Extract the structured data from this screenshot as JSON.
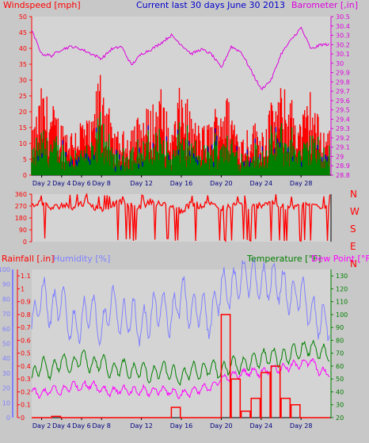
{
  "page": {
    "title": "Current last 30 days June 30 2013",
    "colors": {
      "background": "#c8c8c8",
      "plot_bg": "#dcdcdc",
      "wind": "#ff0000",
      "gust_core": "#0000cc",
      "green": "#008000",
      "baro": "#dd00dd",
      "humidity": "#8080ff",
      "dewpoint": "#ff00ff",
      "title": "#0000cc"
    }
  },
  "chart_data": [
    {
      "type": "line",
      "name": "wind-barometer",
      "title": "Current last 30 days June 30 2013",
      "left_axis_label": "Windspeed [mph]",
      "right_axis_label": "Barometer [,in]",
      "left_ticks": [
        "0",
        "5",
        "10",
        "15",
        "20",
        "25",
        "30",
        "35",
        "40",
        "45",
        "50"
      ],
      "right_ticks": [
        "28.8",
        "28.9",
        "29",
        "29.1",
        "29.2",
        "29.3",
        "29.4",
        "29.5",
        "29.6",
        "29.7",
        "29.8",
        "29.9",
        "30",
        "30.1",
        "30.2",
        "30.3",
        "30.4",
        "30.5"
      ],
      "ylim_left": [
        0,
        50
      ],
      "ylim_right": [
        28.8,
        30.5
      ],
      "x_ticks": [
        "Day 2",
        "Day 4",
        "Day 6",
        "Day 8",
        "Day 12",
        "Day 16",
        "Day 20",
        "Day 24",
        "Day 28"
      ],
      "x_tick_days": [
        2,
        4,
        6,
        8,
        12,
        16,
        20,
        24,
        28
      ],
      "xlim_days": [
        1,
        31
      ],
      "series": [
        {
          "role": "barometer",
          "color": "#dd00dd",
          "x": [
            1,
            2,
            3,
            4,
            5,
            6,
            7,
            8,
            9,
            10,
            11,
            12,
            13,
            14,
            15,
            16,
            17,
            18,
            19,
            20,
            21,
            22,
            23,
            24,
            25,
            26,
            27,
            28,
            29,
            30
          ],
          "values": [
            30.35,
            30.1,
            30.08,
            30.15,
            30.18,
            30.15,
            30.1,
            30.05,
            30.15,
            30.18,
            29.98,
            30.1,
            30.15,
            30.22,
            30.3,
            30.2,
            30.1,
            30.15,
            30.1,
            29.95,
            30.18,
            30.12,
            29.92,
            29.72,
            29.82,
            30.1,
            30.25,
            30.38,
            30.15,
            30.2
          ]
        },
        {
          "role": "windspeed",
          "color": "#ff0000",
          "x": [
            1,
            2,
            3,
            4,
            5,
            6,
            7,
            8,
            9,
            10,
            11,
            12,
            13,
            14,
            15,
            16,
            17,
            18,
            19,
            20,
            21,
            22,
            23,
            24,
            25,
            26,
            27,
            28,
            29,
            30
          ],
          "values": [
            10,
            22,
            18,
            14,
            12,
            15,
            13,
            30,
            12,
            10,
            14,
            15,
            18,
            22,
            10,
            24,
            15,
            12,
            14,
            22,
            18,
            10,
            14,
            12,
            18,
            22,
            20,
            14,
            22,
            12
          ]
        }
      ]
    },
    {
      "type": "scatter",
      "name": "wind-direction",
      "left_ticks": [
        "0",
        "90",
        "180",
        "270",
        "360"
      ],
      "ylim": [
        0,
        360
      ],
      "compass_labels": [
        "N",
        "W",
        "S",
        "E",
        "N"
      ],
      "series": [
        {
          "role": "direction",
          "color": "#ff0000",
          "x": [
            1,
            2,
            3,
            4,
            5,
            6,
            7,
            8,
            9,
            10,
            11,
            12,
            13,
            14,
            15,
            16,
            17,
            18,
            19,
            20,
            21,
            22,
            23,
            24,
            25,
            26,
            27,
            28,
            29,
            30
          ],
          "values": [
            270,
            300,
            250,
            280,
            260,
            290,
            270,
            240,
            280,
            300,
            270,
            260,
            310,
            280,
            270,
            230,
            290,
            270,
            300,
            250,
            270,
            290,
            260,
            280,
            310,
            270,
            250,
            290,
            280,
            270
          ]
        }
      ]
    },
    {
      "type": "line",
      "name": "rain-humidity-temp",
      "rain_label": "Rainfall [.in]",
      "humidity_label": "Humidity [%]",
      "temp_label": "Temperature [°F]",
      "dew_label": "Dew Point [°F]",
      "rain_ticks": [
        "0",
        "0.1",
        "0.2",
        "0.3",
        "0.4",
        "0.5",
        "0.6",
        "0.7",
        "0.8",
        "0.9",
        "1",
        "1.1"
      ],
      "humidity_ticks": [
        "0",
        "10",
        "20",
        "30",
        "40",
        "50",
        "60",
        "70",
        "80",
        "90",
        "100"
      ],
      "temp_ticks": [
        "20",
        "30",
        "40",
        "50",
        "60",
        "70",
        "80",
        "90",
        "100",
        "110",
        "120",
        "130"
      ],
      "rain_lim": [
        0,
        1.15
      ],
      "humidity_lim": [
        0,
        100
      ],
      "temp_lim": [
        20,
        135
      ],
      "x_ticks": [
        "Day 2",
        "Day 4",
        "Day 6",
        "Day 8",
        "Day 12",
        "Day 16",
        "Day 20",
        "Day 24",
        "Day 28"
      ],
      "x_tick_days": [
        2,
        4,
        6,
        8,
        12,
        16,
        20,
        24,
        28
      ],
      "xlim_days": [
        1,
        31
      ],
      "series": [
        {
          "role": "humidity",
          "color": "#8080ff",
          "x": [
            1,
            2,
            3,
            4,
            5,
            6,
            7,
            8,
            9,
            10,
            11,
            12,
            13,
            14,
            15,
            16,
            17,
            18,
            19,
            20,
            21,
            22,
            23,
            24,
            25,
            26,
            27,
            28,
            29,
            30
          ],
          "values": [
            60,
            85,
            70,
            80,
            60,
            65,
            75,
            55,
            80,
            65,
            70,
            60,
            70,
            75,
            65,
            85,
            70,
            75,
            65,
            90,
            85,
            95,
            95,
            90,
            92,
            90,
            80,
            85,
            70,
            65
          ]
        },
        {
          "role": "temperature",
          "color": "#008000",
          "x": [
            1,
            2,
            3,
            4,
            5,
            6,
            7,
            8,
            9,
            10,
            11,
            12,
            13,
            14,
            15,
            16,
            17,
            18,
            19,
            20,
            21,
            22,
            23,
            24,
            25,
            26,
            27,
            28,
            29,
            30
          ],
          "values": [
            50,
            62,
            55,
            65,
            58,
            68,
            60,
            64,
            56,
            60,
            55,
            58,
            52,
            58,
            55,
            50,
            58,
            55,
            60,
            55,
            62,
            60,
            64,
            66,
            68,
            65,
            70,
            72,
            75,
            70
          ]
        },
        {
          "role": "dewpoint",
          "color": "#ff00ff",
          "x": [
            1,
            2,
            3,
            4,
            5,
            6,
            7,
            8,
            9,
            10,
            11,
            12,
            13,
            14,
            15,
            16,
            17,
            18,
            19,
            20,
            21,
            22,
            23,
            24,
            25,
            26,
            27,
            28,
            29,
            30
          ],
          "values": [
            40,
            38,
            42,
            40,
            45,
            44,
            46,
            42,
            40,
            42,
            40,
            41,
            40,
            42,
            40,
            38,
            40,
            42,
            44,
            50,
            52,
            54,
            56,
            55,
            58,
            58,
            60,
            62,
            64,
            55
          ]
        },
        {
          "role": "rainfall",
          "color": "#ff0000",
          "x": [
            1,
            2,
            3,
            4,
            5,
            6,
            7,
            8,
            9,
            10,
            11,
            12,
            13,
            14,
            15,
            16,
            17,
            18,
            19,
            20,
            21,
            22,
            23,
            24,
            25,
            26,
            27,
            28,
            29,
            30
          ],
          "values": [
            0,
            0,
            0.01,
            0,
            0,
            0,
            0,
            0,
            0,
            0,
            0,
            0,
            0,
            0,
            0.08,
            0,
            0,
            0,
            0,
            0.8,
            0.3,
            0.05,
            0.15,
            0.35,
            0.4,
            0.15,
            0.1,
            0,
            0,
            0
          ]
        }
      ]
    }
  ]
}
